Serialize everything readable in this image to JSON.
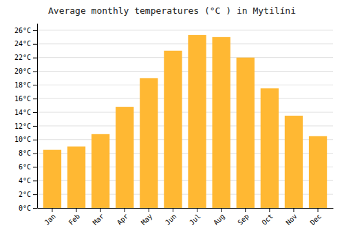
{
  "chart_data": {
    "type": "bar",
    "title": "Average monthly temperatures (°C ) in Mytilíni",
    "categories": [
      "Jan",
      "Feb",
      "Mar",
      "Apr",
      "May",
      "Jun",
      "Jul",
      "Aug",
      "Sep",
      "Oct",
      "Nov",
      "Dec"
    ],
    "values": [
      8.5,
      9.0,
      10.8,
      14.8,
      19.0,
      23.0,
      25.3,
      25.0,
      22.0,
      17.5,
      13.5,
      10.5
    ],
    "color": "#FFB833",
    "ylim": [
      0,
      27
    ],
    "yticks": [
      {
        "value": 0,
        "label": "0°C"
      },
      {
        "value": 2,
        "label": "2°C"
      },
      {
        "value": 4,
        "label": "4°C"
      },
      {
        "value": 6,
        "label": "6°C"
      },
      {
        "value": 8,
        "label": "8°C"
      },
      {
        "value": 10,
        "label": "10°C"
      },
      {
        "value": 12,
        "label": "12°C"
      },
      {
        "value": 14,
        "label": "14°C"
      },
      {
        "value": 16,
        "label": "16°C"
      },
      {
        "value": 18,
        "label": "18°C"
      },
      {
        "value": 20,
        "label": "20°C"
      },
      {
        "value": 22,
        "label": "22°C"
      },
      {
        "value": 24,
        "label": "24°C"
      },
      {
        "value": 26,
        "label": "26°C"
      }
    ],
    "grid": true
  }
}
